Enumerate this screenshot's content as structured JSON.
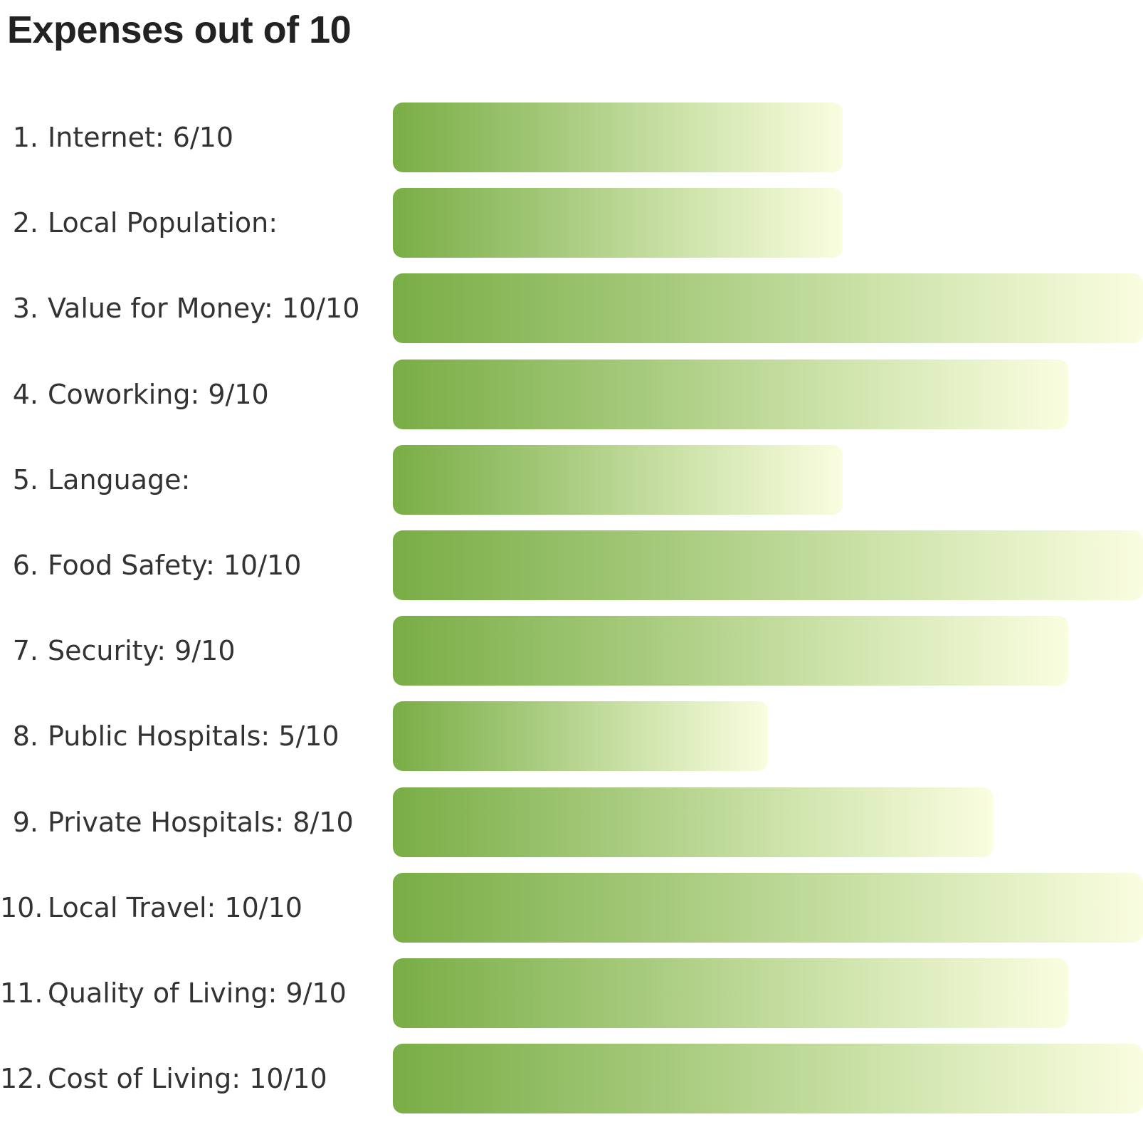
{
  "chart_data": {
    "type": "bar",
    "orientation": "horizontal",
    "title": "Expenses out of 10",
    "xlim": [
      0,
      10
    ],
    "grid": false,
    "colors": {
      "gradient_start": "#79ad45",
      "gradient_end": "#fafde0",
      "label_text": "#333333",
      "title_text": "#222222"
    },
    "bars": [
      {
        "num": "1.",
        "label": "Internet: 6/10",
        "value": 6
      },
      {
        "num": "2.",
        "label": "Local Population:",
        "value": 6
      },
      {
        "num": "3.",
        "label": "Value for Money: 10/10",
        "value": 10
      },
      {
        "num": "4.",
        "label": "Coworking: 9/10",
        "value": 9
      },
      {
        "num": "5.",
        "label": "Language:",
        "value": 6
      },
      {
        "num": "6.",
        "label": "Food Safety: 10/10",
        "value": 10
      },
      {
        "num": "7.",
        "label": "Security: 9/10",
        "value": 9
      },
      {
        "num": "8.",
        "label": "Public Hospitals: 5/10",
        "value": 5
      },
      {
        "num": "9.",
        "label": "Private Hospitals: 8/10",
        "value": 8
      },
      {
        "num": "10.",
        "label": "Local Travel: 10/10",
        "value": 10
      },
      {
        "num": "11.",
        "label": "Quality of Living: 9/10",
        "value": 9
      },
      {
        "num": "12.",
        "label": "Cost of Living: 10/10",
        "value": 10
      }
    ]
  }
}
